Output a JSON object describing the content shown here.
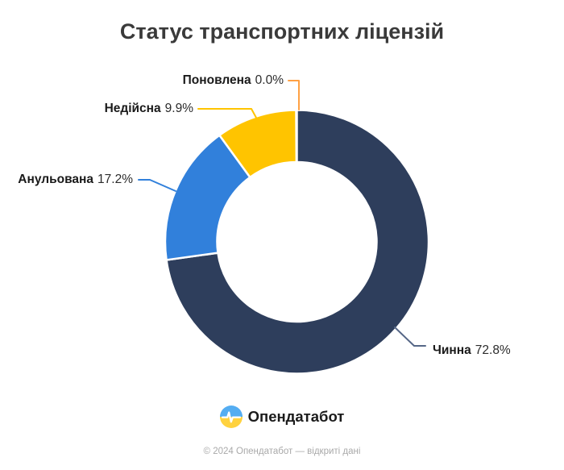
{
  "title": "Статус транспортних ліцензій",
  "chart_data": {
    "type": "pie",
    "subtype": "donut",
    "title": "Статус транспортних ліцензій",
    "labels": [
      "Чинна",
      "Анульована",
      "Недійсна",
      "Поновлена"
    ],
    "values": [
      72.8,
      17.2,
      9.9,
      0.0
    ],
    "value_labels": [
      "72.8%",
      "17.2%",
      "9.9%",
      "0.0%"
    ],
    "colors": [
      "#2e3e5c",
      "#3180db",
      "#ffc400",
      "#ffa144"
    ],
    "connector_colors": [
      "#566787",
      "#3180db",
      "#ffc400",
      "#ffa144"
    ],
    "start_angle": "12-o-clock",
    "direction": "clockwise",
    "inner_radius_ratio": 0.61,
    "slice_gap_color": "#ffffff",
    "legend_position": "callout-labels"
  },
  "logo": {
    "text": "Опендатабот",
    "icon": "opendatabot-pulse-icon",
    "flag_top_color": "#54adf2",
    "flag_bottom_color": "#ffd23f",
    "pulse_color": "#ffffff"
  },
  "footer": {
    "text": "© 2024 Опендатабот — відкриті дані"
  }
}
